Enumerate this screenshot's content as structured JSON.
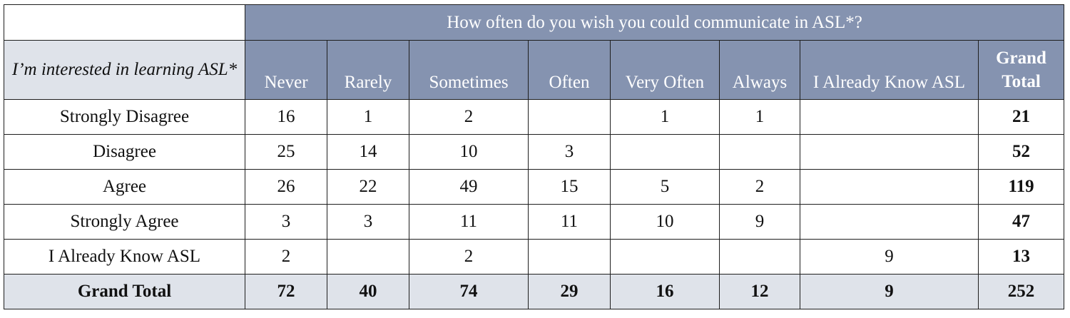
{
  "table": {
    "super_header": "How often do you wish you could communicate in ASL*?",
    "row_header_label": "I’m interested in learning ASL*",
    "columns": [
      "Never",
      "Rarely",
      "Sometimes",
      "Often",
      "Very Often",
      "Always",
      "I Already Know ASL",
      "Grand Total"
    ],
    "rows": [
      {
        "label": "Strongly Disagree",
        "cells": [
          "16",
          "1",
          "2",
          "",
          "1",
          "1",
          "",
          "21"
        ]
      },
      {
        "label": "Disagree",
        "cells": [
          "25",
          "14",
          "10",
          "3",
          "",
          "",
          "",
          "52"
        ]
      },
      {
        "label": "Agree",
        "cells": [
          "26",
          "22",
          "49",
          "15",
          "5",
          "2",
          "",
          "119"
        ]
      },
      {
        "label": "Strongly Agree",
        "cells": [
          "3",
          "3",
          "11",
          "11",
          "10",
          "9",
          "",
          "47"
        ]
      },
      {
        "label": "I Already Know ASL",
        "cells": [
          "2",
          "",
          "2",
          "",
          "",
          "",
          "9",
          "13"
        ]
      }
    ],
    "total_row": {
      "label": "Grand Total",
      "cells": [
        "72",
        "40",
        "74",
        "29",
        "16",
        "12",
        "9",
        "252"
      ]
    }
  },
  "colors": {
    "header_bg": "#8593b0",
    "label_bg": "#dfe3ea",
    "border": "#1e1e1e"
  }
}
